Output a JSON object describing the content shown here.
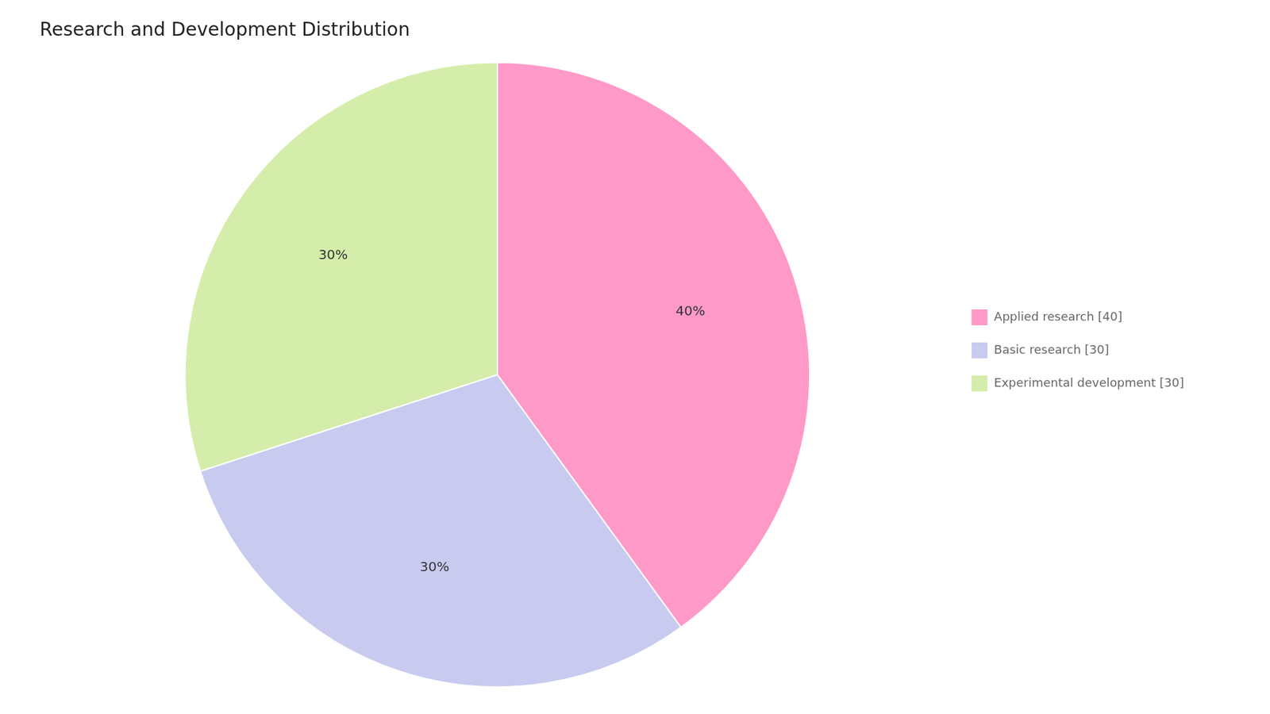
{
  "chart_data": {
    "type": "pie",
    "title": "Research and Development Distribution",
    "categories": [
      "Applied research [40]",
      "Basic research [30]",
      "Experimental development [30]"
    ],
    "values": [
      40,
      30,
      30
    ],
    "value_labels": [
      "40%",
      "30%",
      "30%"
    ],
    "colors": [
      "#FF99C8",
      "#C8CAEF",
      "#D5EDAA"
    ],
    "data_labels": true,
    "legend": "right"
  }
}
